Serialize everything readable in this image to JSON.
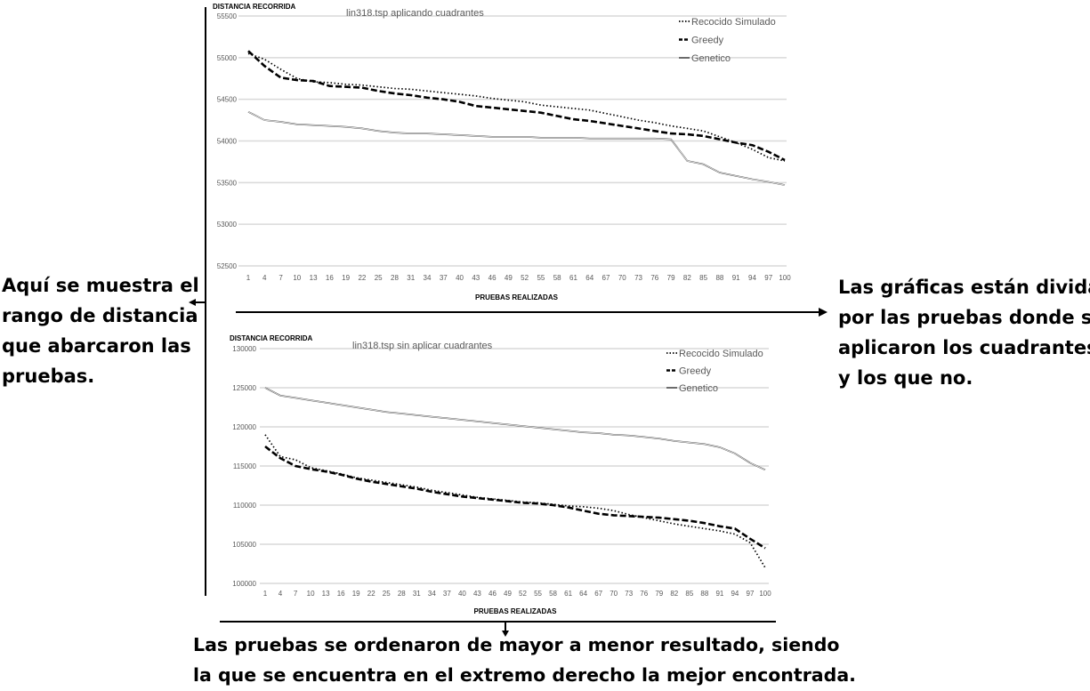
{
  "annotations": {
    "left": [
      "Aquí se muestra el",
      "rango de distancia",
      "que abarcaron las",
      "pruebas."
    ],
    "right": [
      "Las gráficas están dividas",
      "por las pruebas donde se",
      "aplicaron los cuadrantes",
      "y los que no."
    ],
    "bottom": [
      "Las pruebas se ordenaron de mayor a menor resultado, siendo",
      "la que se encuentra en el extremo derecho la mejor encontrada."
    ]
  },
  "chart_data": [
    {
      "type": "line",
      "title": "lin318.tsp aplicando cuadrantes",
      "ylabel": "DISTANCIA RECORRIDA",
      "xlabel": "PRUEBAS REALIZADAS",
      "ylim": [
        52500,
        55500
      ],
      "yticks": [
        "52500",
        "53000",
        "53500",
        "54000",
        "54500",
        "55000",
        "55500"
      ],
      "xticks": [
        "1",
        "4",
        "7",
        "10",
        "13",
        "16",
        "19",
        "22",
        "25",
        "28",
        "31",
        "34",
        "37",
        "40",
        "43",
        "46",
        "49",
        "52",
        "55",
        "58",
        "61",
        "64",
        "67",
        "70",
        "73",
        "76",
        "79",
        "82",
        "85",
        "88",
        "91",
        "94",
        "97",
        "100"
      ],
      "grid": true,
      "legend": "top-right",
      "x": [
        1,
        4,
        7,
        10,
        13,
        16,
        19,
        22,
        25,
        28,
        31,
        34,
        37,
        40,
        43,
        46,
        49,
        52,
        55,
        58,
        61,
        64,
        67,
        70,
        73,
        76,
        79,
        82,
        85,
        88,
        91,
        94,
        97,
        100
      ],
      "series": [
        {
          "name": "Recocido Simulado",
          "style": "dotted",
          "values": [
            55050,
            54980,
            54860,
            54750,
            54710,
            54700,
            54680,
            54670,
            54650,
            54630,
            54620,
            54600,
            54580,
            54560,
            54540,
            54510,
            54490,
            54470,
            54430,
            54410,
            54390,
            54370,
            54330,
            54290,
            54250,
            54220,
            54180,
            54150,
            54120,
            54050,
            53980,
            53900,
            53800,
            53760
          ]
        },
        {
          "name": "Greedy",
          "style": "dashed",
          "values": [
            55080,
            54900,
            54760,
            54730,
            54720,
            54660,
            54650,
            54640,
            54600,
            54570,
            54550,
            54520,
            54500,
            54470,
            54420,
            54400,
            54380,
            54360,
            54340,
            54300,
            54260,
            54240,
            54210,
            54180,
            54150,
            54120,
            54090,
            54080,
            54060,
            54020,
            53980,
            53950,
            53870,
            53770
          ]
        },
        {
          "name": "Genetico",
          "style": "solid",
          "values": [
            54350,
            54250,
            54230,
            54200,
            54190,
            54180,
            54170,
            54150,
            54120,
            54100,
            54090,
            54090,
            54080,
            54070,
            54060,
            54050,
            54050,
            54050,
            54040,
            54040,
            54040,
            54030,
            54030,
            54030,
            54030,
            54030,
            54020,
            53760,
            53720,
            53620,
            53580,
            53540,
            53510,
            53470
          ]
        }
      ]
    },
    {
      "type": "line",
      "title": "lin318.tsp sin aplicar cuadrantes",
      "ylabel": "DISTANCIA RECORRIDA",
      "xlabel": "PRUEBAS REALIZADAS",
      "ylim": [
        100000,
        130000
      ],
      "yticks": [
        "100000",
        "105000",
        "110000",
        "115000",
        "120000",
        "125000",
        "130000"
      ],
      "xticks": [
        "1",
        "4",
        "7",
        "10",
        "13",
        "16",
        "19",
        "22",
        "25",
        "28",
        "31",
        "34",
        "37",
        "40",
        "43",
        "46",
        "49",
        "52",
        "55",
        "58",
        "61",
        "64",
        "67",
        "70",
        "73",
        "76",
        "79",
        "82",
        "85",
        "88",
        "91",
        "94",
        "97",
        "100"
      ],
      "grid": true,
      "legend": "top-right",
      "x": [
        1,
        4,
        7,
        10,
        13,
        16,
        19,
        22,
        25,
        28,
        31,
        34,
        37,
        40,
        43,
        46,
        49,
        52,
        55,
        58,
        61,
        64,
        67,
        70,
        73,
        76,
        79,
        82,
        85,
        88,
        91,
        94,
        97,
        100
      ],
      "series": [
        {
          "name": "Recocido Simulado",
          "style": "dotted",
          "values": [
            119000,
            116200,
            115800,
            114800,
            114400,
            114000,
            113500,
            113200,
            112900,
            112600,
            112300,
            111900,
            111600,
            111300,
            111000,
            110800,
            110600,
            110400,
            110300,
            110100,
            109900,
            109800,
            109600,
            109300,
            108800,
            108400,
            108000,
            107600,
            107300,
            107000,
            106700,
            106300,
            105200,
            102000
          ]
        },
        {
          "name": "Greedy",
          "style": "dashed",
          "values": [
            117500,
            116000,
            115000,
            114600,
            114300,
            113900,
            113400,
            113000,
            112700,
            112400,
            112100,
            111700,
            111400,
            111100,
            110900,
            110700,
            110500,
            110300,
            110200,
            110000,
            109700,
            109300,
            108900,
            108700,
            108600,
            108500,
            108400,
            108200,
            108000,
            107700,
            107300,
            107000,
            105700,
            104500
          ]
        },
        {
          "name": "Genetico",
          "style": "solid",
          "values": [
            125000,
            124000,
            123700,
            123400,
            123100,
            122800,
            122500,
            122200,
            121900,
            121700,
            121500,
            121300,
            121100,
            120900,
            120700,
            120500,
            120300,
            120100,
            119900,
            119700,
            119500,
            119300,
            119200,
            119000,
            118900,
            118700,
            118500,
            118200,
            118000,
            117800,
            117400,
            116600,
            115400,
            114500
          ]
        }
      ]
    }
  ]
}
